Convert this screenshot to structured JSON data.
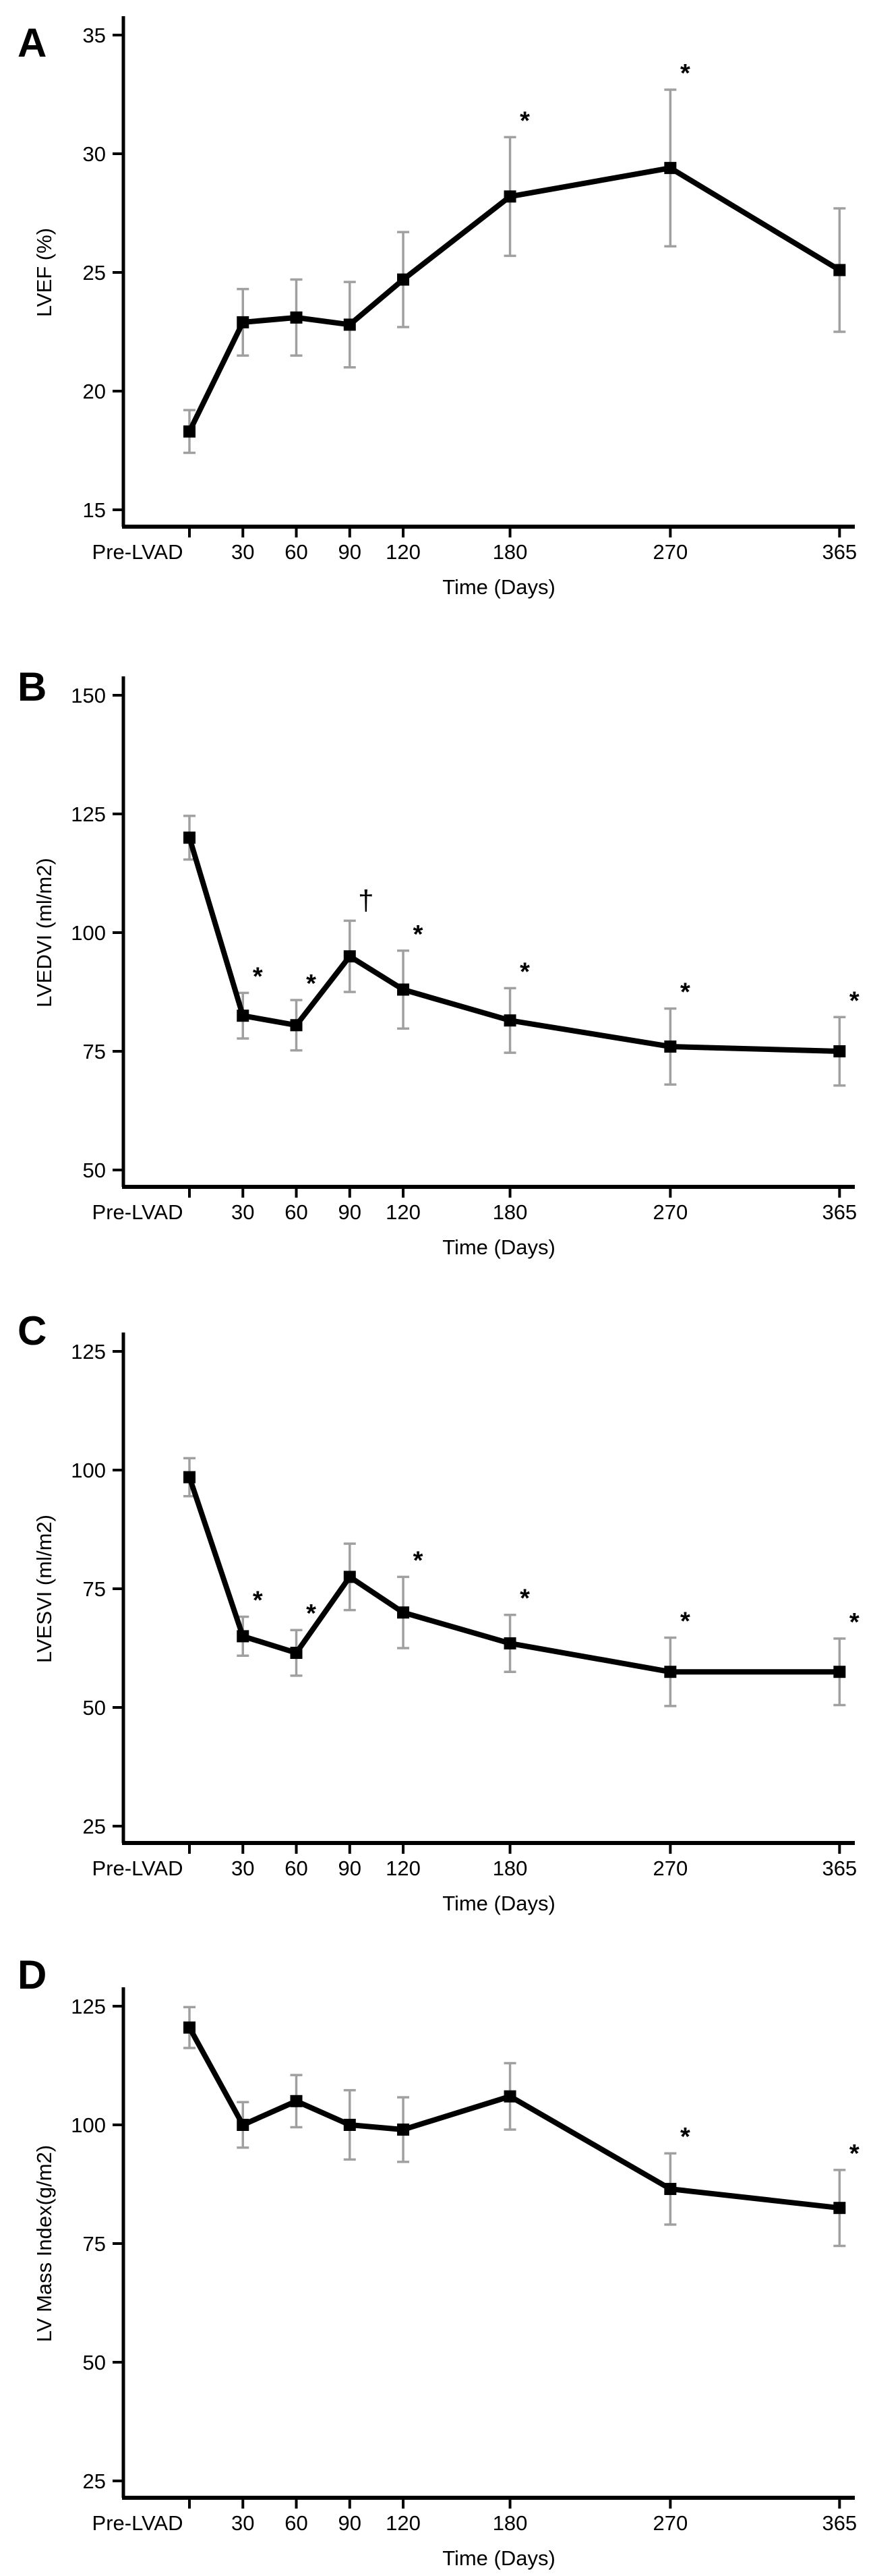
{
  "figure": {
    "background": "#ffffff",
    "line_color": "#000000",
    "marker_color": "#000000",
    "axis_color": "#000000",
    "error_bar_color": "#a0a0a0",
    "annotation_color": "#1e1e38",
    "significance_symbols": {
      "asterisk": "*",
      "dagger": "†"
    }
  },
  "chart_data": [
    {
      "type": "line",
      "panel_label": "A",
      "ylabel": "LVEF (%)",
      "xlabel": "Time (Days)",
      "categories": [
        "Pre-LVAD",
        "30",
        "60",
        "90",
        "120",
        "180",
        "270",
        "365"
      ],
      "x_days": [
        0,
        30,
        60,
        90,
        120,
        180,
        270,
        365
      ],
      "values": [
        18.3,
        22.9,
        23.1,
        22.8,
        24.7,
        28.2,
        29.4,
        25.1
      ],
      "errors": [
        0.9,
        1.4,
        1.6,
        1.8,
        2.0,
        2.5,
        3.3,
        2.6
      ],
      "annotations": [
        "",
        "",
        "",
        "",
        "",
        "*",
        "*",
        ""
      ],
      "yticks": [
        35,
        30,
        25,
        20,
        15
      ],
      "ylim": [
        14.5,
        36
      ],
      "grid": false,
      "legend": "none"
    },
    {
      "type": "line",
      "panel_label": "B",
      "ylabel": "LVEDVI (ml/m2)",
      "xlabel": "Time (Days)",
      "categories": [
        "Pre-LVAD",
        "30",
        "60",
        "90",
        "120",
        "180",
        "270",
        "365"
      ],
      "x_days": [
        0,
        30,
        60,
        90,
        120,
        180,
        270,
        365
      ],
      "values": [
        120,
        82.5,
        80.5,
        95,
        88,
        81.5,
        76,
        75
      ],
      "errors": [
        4.6,
        4.8,
        5.3,
        7.5,
        8.2,
        6.8,
        8.0,
        7.2
      ],
      "annotations": [
        "",
        "*",
        "*",
        "†",
        "*",
        "*",
        "*",
        "*"
      ],
      "yticks": [
        150,
        125,
        100,
        75,
        50
      ],
      "ylim": [
        46,
        155
      ],
      "grid": false,
      "legend": "none"
    },
    {
      "type": "line",
      "panel_label": "C",
      "ylabel": "LVESVI (ml/m2)",
      "xlabel": "Time (Days)",
      "categories": [
        "Pre-LVAD",
        "30",
        "60",
        "90",
        "120",
        "180",
        "270",
        "365"
      ],
      "x_days": [
        0,
        30,
        60,
        90,
        120,
        180,
        270,
        365
      ],
      "values": [
        98.5,
        65,
        61.5,
        77.5,
        70,
        63.5,
        57.5,
        57.5
      ],
      "errors": [
        4.0,
        4.1,
        4.8,
        7.0,
        7.5,
        6.0,
        7.2,
        7.0
      ],
      "annotations": [
        "",
        "*",
        "*",
        "",
        "*",
        "*",
        "*",
        "*"
      ],
      "yticks": [
        125,
        100,
        75,
        50,
        25
      ],
      "ylim": [
        21,
        130
      ],
      "grid": false,
      "legend": "none"
    },
    {
      "type": "line",
      "panel_label": "D",
      "ylabel": "LV Mass Index(g/m2)",
      "xlabel": "Time (Days)",
      "categories": [
        "Pre-LVAD",
        "30",
        "60",
        "90",
        "120",
        "180",
        "270",
        "365"
      ],
      "x_days": [
        0,
        30,
        60,
        90,
        120,
        180,
        270,
        365
      ],
      "values": [
        120.5,
        100,
        105,
        100,
        99,
        106,
        86.5,
        82.5
      ],
      "errors": [
        4.3,
        4.8,
        5.5,
        7.3,
        6.8,
        7.0,
        7.5,
        8.0
      ],
      "annotations": [
        "",
        "",
        "",
        "",
        "",
        "",
        "*",
        "*"
      ],
      "yticks": [
        125,
        100,
        75,
        50,
        25
      ],
      "ylim": [
        21,
        130
      ],
      "grid": false,
      "legend": "none"
    }
  ]
}
